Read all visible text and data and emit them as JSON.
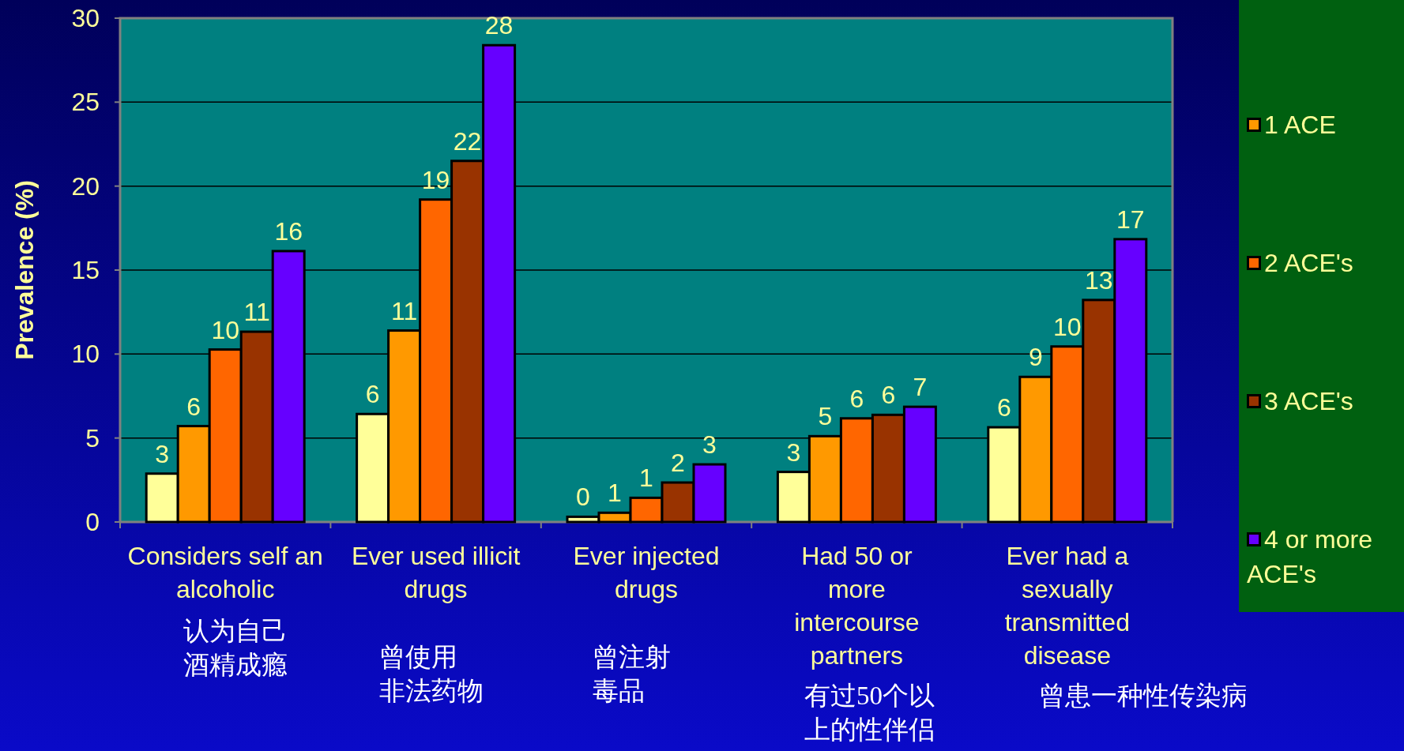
{
  "chart_data": {
    "type": "bar",
    "ylabel": "Prevalence (%)",
    "categories": [
      "Considers self an alcoholic",
      "Ever used illicit drugs",
      "Ever injected drugs",
      "Had 50 or more intercourse partners",
      "Ever had a sexually transmitted disease"
    ],
    "series": [
      {
        "color": "#ffff99",
        "values": [
          2.88,
          6.43,
          0.31,
          2.98,
          5.64
        ],
        "value_labels": [
          "3",
          "6",
          "0",
          "3",
          "6"
        ]
      },
      {
        "name": "1 ACE",
        "color": "#ff9900",
        "values": [
          5.71,
          11.4,
          0.55,
          5.11,
          8.64
        ],
        "value_labels": [
          "6",
          "11",
          "1",
          "5",
          "9"
        ]
      },
      {
        "name": "2 ACE's",
        "color": "#ff6600",
        "values": [
          10.27,
          19.2,
          1.44,
          6.17,
          10.45
        ],
        "value_labels": [
          "10",
          "19",
          "1",
          "6",
          "10"
        ]
      },
      {
        "name": "3 ACE's",
        "color": "#993300",
        "values": [
          11.33,
          21.5,
          2.35,
          6.38,
          13.22
        ],
        "value_labels": [
          "11",
          "22",
          "2",
          "6",
          "13"
        ]
      },
      {
        "name": "4 or more ACE's",
        "color": "#6600ff",
        "values": [
          16.13,
          28.39,
          3.43,
          6.86,
          16.84
        ],
        "value_labels": [
          "16",
          "28",
          "3",
          "7",
          "17"
        ]
      }
    ],
    "ylim": [
      0,
      30
    ],
    "yticks": [
      0,
      5,
      10,
      15,
      20,
      25,
      30
    ],
    "grid": "y",
    "legend": "right",
    "annotations": [
      "认为自己酒精成瘾",
      "曾使用非法药物",
      "曾注射毒品",
      "有过50个以上的性伴侣",
      "曾患一种性传染病"
    ]
  }
}
